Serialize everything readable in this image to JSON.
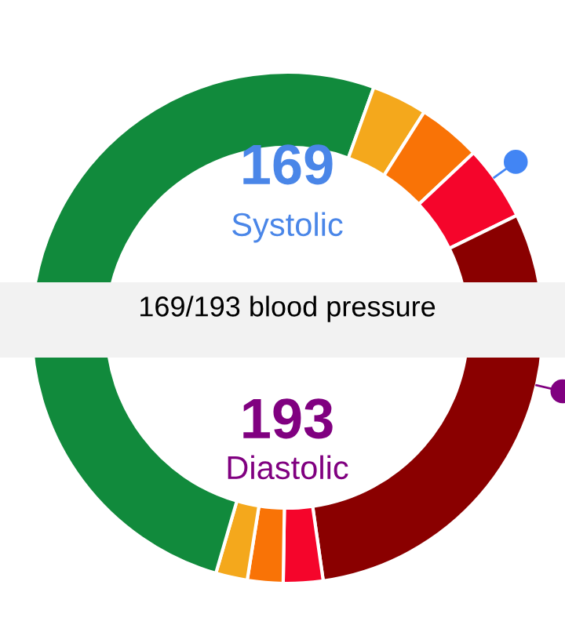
{
  "chart_data": {
    "type": "donut",
    "categories": [
      null,
      null,
      null,
      null,
      null,
      null,
      null,
      null,
      null,
      null
    ],
    "values": [
      30.5,
      3.5,
      4,
      4.75,
      7.25,
      22.75,
      2.5,
      2.25,
      2,
      20.5
    ],
    "colors": [
      "#118a3c",
      "#f4a81c",
      "#f97306",
      "#f5052b",
      "#8a0000",
      "#8a0000",
      "#f5052b",
      "#f97306",
      "#f4a81c",
      "#118a3c"
    ],
    "annotations": [
      "169",
      "Systolic",
      "169/193 blood pressure",
      "193",
      "Diastolic"
    ]
  }
}
